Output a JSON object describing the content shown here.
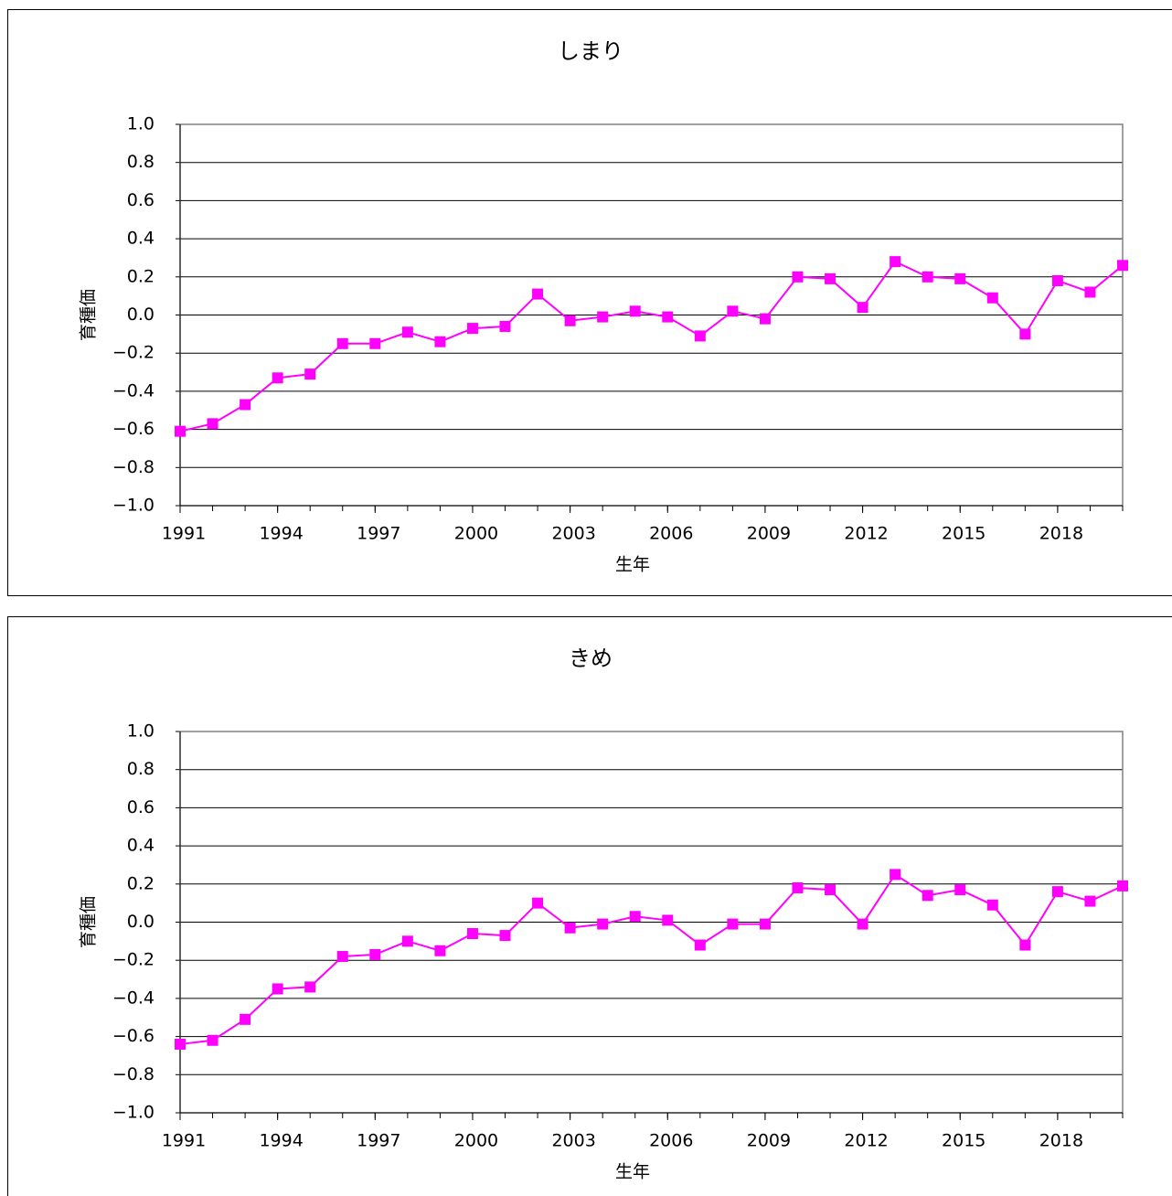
{
  "chart_data": [
    {
      "type": "line",
      "title": "しまり",
      "x_label": "生年",
      "y_label": "育種価",
      "x": [
        1991,
        1992,
        1993,
        1994,
        1995,
        1996,
        1997,
        1998,
        1999,
        2000,
        2001,
        2002,
        2003,
        2004,
        2005,
        2006,
        2007,
        2008,
        2009,
        2010,
        2011,
        2012,
        2013,
        2014,
        2015,
        2016,
        2017,
        2018,
        2019,
        2020
      ],
      "series": [
        {
          "color": "#ff00ff",
          "values": [
            -0.61,
            -0.57,
            -0.47,
            -0.33,
            -0.31,
            -0.15,
            -0.15,
            -0.09,
            -0.14,
            -0.07,
            -0.06,
            0.11,
            -0.03,
            -0.01,
            0.02,
            -0.01,
            -0.11,
            0.02,
            -0.02,
            0.2,
            0.19,
            0.04,
            0.28,
            0.2,
            0.19,
            0.09,
            -0.1,
            0.18,
            0.12,
            0.26
          ]
        }
      ],
      "xlim": [
        1991,
        2020
      ],
      "xticks": [
        1991,
        1994,
        1997,
        2000,
        2003,
        2006,
        2009,
        2012,
        2015,
        2018
      ],
      "ylim": [
        -1,
        1
      ],
      "yticks": [
        {
          "value": -1,
          "label": "−1.0"
        },
        {
          "value": -0.8,
          "label": "−0.8"
        },
        {
          "value": -0.6,
          "label": "−0.6"
        },
        {
          "value": -0.4,
          "label": "−0.4"
        },
        {
          "value": -0.2,
          "label": "−0.2"
        },
        {
          "value": 0,
          "label": "0.0"
        },
        {
          "value": 0.2,
          "label": "0.2"
        },
        {
          "value": 0.4,
          "label": "0.4"
        },
        {
          "value": 0.6,
          "label": "0.6"
        },
        {
          "value": 0.8,
          "label": "0.8"
        },
        {
          "value": 1,
          "label": "1.0"
        }
      ],
      "grid": true
    },
    {
      "type": "line",
      "title": "きめ",
      "x_label": "生年",
      "y_label": "育種価",
      "x": [
        1991,
        1992,
        1993,
        1994,
        1995,
        1996,
        1997,
        1998,
        1999,
        2000,
        2001,
        2002,
        2003,
        2004,
        2005,
        2006,
        2007,
        2008,
        2009,
        2010,
        2011,
        2012,
        2013,
        2014,
        2015,
        2016,
        2017,
        2018,
        2019,
        2020
      ],
      "series": [
        {
          "color": "#ff00ff",
          "values": [
            -0.64,
            -0.62,
            -0.51,
            -0.35,
            -0.34,
            -0.18,
            -0.17,
            -0.1,
            -0.15,
            -0.06,
            -0.07,
            0.1,
            -0.03,
            -0.01,
            0.03,
            0.01,
            -0.12,
            -0.01,
            -0.01,
            0.18,
            0.17,
            -0.01,
            0.25,
            0.14,
            0.17,
            0.09,
            -0.12,
            0.16,
            0.11,
            0.19
          ]
        }
      ],
      "xlim": [
        1991,
        2020
      ],
      "xticks": [
        1991,
        1994,
        1997,
        2000,
        2003,
        2006,
        2009,
        2012,
        2015,
        2018
      ],
      "ylim": [
        -1,
        1
      ],
      "yticks": [
        {
          "value": -1,
          "label": "−1.0"
        },
        {
          "value": -0.8,
          "label": "−0.8"
        },
        {
          "value": -0.6,
          "label": "−0.6"
        },
        {
          "value": -0.4,
          "label": "−0.4"
        },
        {
          "value": -0.2,
          "label": "−0.2"
        },
        {
          "value": 0,
          "label": "0.0"
        },
        {
          "value": 0.2,
          "label": "0.2"
        },
        {
          "value": 0.4,
          "label": "0.4"
        },
        {
          "value": 0.6,
          "label": "0.6"
        },
        {
          "value": 0.8,
          "label": "0.8"
        },
        {
          "value": 1,
          "label": "1.0"
        }
      ],
      "grid": true
    }
  ]
}
